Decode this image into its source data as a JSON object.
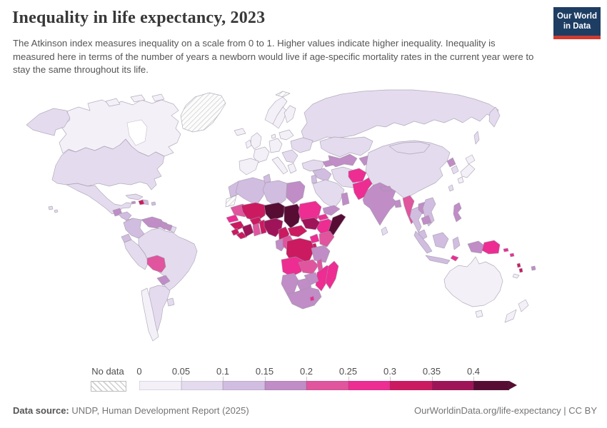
{
  "header": {
    "title": "Inequality in life expectancy, 2023",
    "logo": {
      "line1": "Our World",
      "line2": "in Data",
      "bg_color": "#1d3d63",
      "bar_color": "#d33a2f"
    }
  },
  "subtitle": "The Atkinson index measures inequality on a scale from 0 to 1. Higher values indicate higher inequality. Inequality is measured here in terms of the number of years a newborn would live if age-specific mortality rates in the current year were to stay the same throughout its life.",
  "legend": {
    "no_data_label": "No data",
    "ticks": [
      "0",
      "0.05",
      "0.1",
      "0.15",
      "0.2",
      "0.25",
      "0.3",
      "0.35",
      "0.4"
    ],
    "palette": [
      "#f4f0f8",
      "#e4dcee",
      "#d1bde0",
      "#c08dc6",
      "#e0559d",
      "#ed2d92",
      "#cb1a60",
      "#9f1458",
      "#570d33"
    ],
    "nodata_hatch_color": "#cfcfcf"
  },
  "footer": {
    "source_label": "Data source:",
    "source_text": " UNDP, Human Development Report (2025)",
    "link_text": "OurWorldinData.org/life-expectancy | CC BY"
  },
  "chart_data": {
    "type": "heatmap",
    "subtype": "world-choropleth-map",
    "title": "Inequality in life expectancy, 2023",
    "unit": "Atkinson index (0–1)",
    "legend_position": "bottom",
    "bucket_ranges": [
      "0-0.05",
      "0.05-0.1",
      "0.1-0.15",
      "0.15-0.2",
      "0.2-0.25",
      "0.25-0.3",
      "0.3-0.35",
      "0.35-0.4",
      "0.4+"
    ],
    "no_data_key": "nd",
    "countries": [
      {
        "id": "canada",
        "name": "Canada",
        "bucket": 0
      },
      {
        "id": "alaska",
        "name": "United States (Alaska)",
        "bucket": 1
      },
      {
        "id": "greenland",
        "name": "Greenland",
        "bucket": "nd"
      },
      {
        "id": "iceland",
        "name": "Iceland",
        "bucket": 0
      },
      {
        "id": "usa",
        "name": "United States",
        "bucket": 1
      },
      {
        "id": "hawaii",
        "name": "United States (Hawaii)",
        "bucket": 1
      },
      {
        "id": "mexico",
        "name": "Mexico",
        "bucket": 1
      },
      {
        "id": "guatemala",
        "name": "Guatemala",
        "bucket": 3
      },
      {
        "id": "honduras",
        "name": "Honduras/Nicaragua",
        "bucket": 2
      },
      {
        "id": "panama",
        "name": "Costa Rica/Panama",
        "bucket": 1
      },
      {
        "id": "cuba",
        "name": "Cuba",
        "bucket": 1
      },
      {
        "id": "jamaica",
        "name": "Jamaica",
        "bucket": 3
      },
      {
        "id": "haiti",
        "name": "Haiti",
        "bucket": 6
      },
      {
        "id": "dominican-republic",
        "name": "Dominican Republic",
        "bucket": 2
      },
      {
        "id": "puerto-rico",
        "name": "Puerto Rico",
        "bucket": 2
      },
      {
        "id": "colombia",
        "name": "Colombia",
        "bucket": 2
      },
      {
        "id": "venezuela",
        "name": "Venezuela",
        "bucket": 3
      },
      {
        "id": "guyana",
        "name": "Guyana",
        "bucket": 3
      },
      {
        "id": "suriname",
        "name": "Suriname",
        "bucket": 3
      },
      {
        "id": "french-guiana",
        "name": "French Guiana",
        "bucket": 1
      },
      {
        "id": "ecuador",
        "name": "Ecuador",
        "bucket": 2
      },
      {
        "id": "peru",
        "name": "Peru",
        "bucket": 1
      },
      {
        "id": "brazil",
        "name": "Brazil",
        "bucket": 1
      },
      {
        "id": "bolivia",
        "name": "Bolivia",
        "bucket": 4
      },
      {
        "id": "paraguay",
        "name": "Paraguay",
        "bucket": 3
      },
      {
        "id": "chile",
        "name": "Chile",
        "bucket": 0
      },
      {
        "id": "argentina",
        "name": "Argentina",
        "bucket": 1
      },
      {
        "id": "uruguay",
        "name": "Uruguay",
        "bucket": 1
      },
      {
        "id": "norway",
        "name": "Norway",
        "bucket": 0
      },
      {
        "id": "sweden",
        "name": "Sweden",
        "bucket": 0
      },
      {
        "id": "finland",
        "name": "Finland",
        "bucket": 0
      },
      {
        "id": "denmark",
        "name": "Denmark",
        "bucket": 0
      },
      {
        "id": "united-kingdom",
        "name": "United Kingdom",
        "bucket": 0
      },
      {
        "id": "ireland",
        "name": "Ireland",
        "bucket": 0
      },
      {
        "id": "spain",
        "name": "Spain/Portugal",
        "bucket": 0
      },
      {
        "id": "france",
        "name": "France",
        "bucket": 0
      },
      {
        "id": "germany",
        "name": "Germany",
        "bucket": 0
      },
      {
        "id": "italy",
        "name": "Italy",
        "bucket": 0
      },
      {
        "id": "balkans",
        "name": "Balkans",
        "bucket": 1
      },
      {
        "id": "greece",
        "name": "Greece",
        "bucket": 0
      },
      {
        "id": "poland",
        "name": "Poland/Baltics",
        "bucket": 0
      },
      {
        "id": "ukraine",
        "name": "Ukraine",
        "bucket": 1
      },
      {
        "id": "russia",
        "name": "Russia",
        "bucket": 1
      },
      {
        "id": "svalbard",
        "name": "Svalbard",
        "bucket": "nd"
      },
      {
        "id": "turkey",
        "name": "Turkey",
        "bucket": 1
      },
      {
        "id": "syria-iraq",
        "name": "Syria/Iraq",
        "bucket": 2
      },
      {
        "id": "jordan-israel",
        "name": "Jordan/Israel",
        "bucket": 2
      },
      {
        "id": "saudi-arabia",
        "name": "Saudi Arabia",
        "bucket": 1
      },
      {
        "id": "yemen",
        "name": "Yemen",
        "bucket": 3
      },
      {
        "id": "oman",
        "name": "Oman",
        "bucket": 3
      },
      {
        "id": "caucasus",
        "name": "Caucasus",
        "bucket": 3
      },
      {
        "id": "iran",
        "name": "Iran",
        "bucket": 1
      },
      {
        "id": "kazakhstan",
        "name": "Kazakhstan",
        "bucket": 1
      },
      {
        "id": "uzbekistan-turkmenistan",
        "name": "Uzbekistan/Turkmenistan",
        "bucket": 3
      },
      {
        "id": "kyrgyzstan-tajikistan",
        "name": "Kyrgyzstan/Tajikistan",
        "bucket": 3
      },
      {
        "id": "afghanistan",
        "name": "Afghanistan",
        "bucket": 5
      },
      {
        "id": "pakistan",
        "name": "Pakistan",
        "bucket": 5
      },
      {
        "id": "india",
        "name": "India",
        "bucket": 3
      },
      {
        "id": "nepal",
        "name": "Nepal",
        "bucket": 3
      },
      {
        "id": "bangladesh",
        "name": "Bangladesh",
        "bucket": 3
      },
      {
        "id": "sri-lanka",
        "name": "Sri Lanka",
        "bucket": 1
      },
      {
        "id": "myanmar",
        "name": "Myanmar",
        "bucket": 4
      },
      {
        "id": "thailand",
        "name": "Thailand",
        "bucket": 2
      },
      {
        "id": "laos",
        "name": "Laos",
        "bucket": 3
      },
      {
        "id": "vietnam",
        "name": "Vietnam",
        "bucket": 2
      },
      {
        "id": "cambodia",
        "name": "Cambodia",
        "bucket": 3
      },
      {
        "id": "malaysia",
        "name": "Malaysia",
        "bucket": 2
      },
      {
        "id": "china",
        "name": "China",
        "bucket": 1
      },
      {
        "id": "mongolia",
        "name": "Mongolia",
        "bucket": 1
      },
      {
        "id": "north-korea",
        "name": "North Korea",
        "bucket": 3
      },
      {
        "id": "south-korea",
        "name": "South Korea",
        "bucket": 1
      },
      {
        "id": "japan",
        "name": "Japan",
        "bucket": 0
      },
      {
        "id": "taiwan",
        "name": "Taiwan",
        "bucket": 1
      },
      {
        "id": "philippines",
        "name": "Philippines",
        "bucket": 3
      },
      {
        "id": "indonesia",
        "name": "Indonesia",
        "bucket": 2
      },
      {
        "id": "timor-leste",
        "name": "Timor-Leste",
        "bucket": 5
      },
      {
        "id": "indonesia-papua",
        "name": "Indonesia (Papua)",
        "bucket": 3
      },
      {
        "id": "papua-new-guinea",
        "name": "Papua New Guinea",
        "bucket": 5
      },
      {
        "id": "solomon-islands",
        "name": "Solomon Islands",
        "bucket": 5
      },
      {
        "id": "vanuatu",
        "name": "Vanuatu",
        "bucket": 6
      },
      {
        "id": "fiji",
        "name": "Fiji",
        "bucket": 3
      },
      {
        "id": "new-caledonia",
        "name": "New Caledonia",
        "bucket": 0
      },
      {
        "id": "australia",
        "name": "Australia",
        "bucket": 0
      },
      {
        "id": "new-zealand",
        "name": "New Zealand",
        "bucket": 0
      },
      {
        "id": "morocco",
        "name": "Morocco",
        "bucket": 2
      },
      {
        "id": "western-sahara",
        "name": "Western Sahara",
        "bucket": "nd"
      },
      {
        "id": "algeria",
        "name": "Algeria",
        "bucket": 2
      },
      {
        "id": "tunisia",
        "name": "Tunisia",
        "bucket": 2
      },
      {
        "id": "libya",
        "name": "Libya",
        "bucket": 2
      },
      {
        "id": "egypt",
        "name": "Egypt",
        "bucket": 3
      },
      {
        "id": "mauritania",
        "name": "Mauritania",
        "bucket": 4
      },
      {
        "id": "senegal",
        "name": "Senegal",
        "bucket": 5
      },
      {
        "id": "guinea",
        "name": "Guinea",
        "bucket": 6
      },
      {
        "id": "sierra-leone",
        "name": "Sierra Leone",
        "bucket": 6
      },
      {
        "id": "liberia",
        "name": "Liberia",
        "bucket": 6
      },
      {
        "id": "mali",
        "name": "Mali",
        "bucket": 6
      },
      {
        "id": "burkina-faso",
        "name": "Burkina Faso",
        "bucket": 6
      },
      {
        "id": "cote-divoire",
        "name": "Cote d'Ivoire",
        "bucket": 7
      },
      {
        "id": "ghana",
        "name": "Ghana",
        "bucket": 4
      },
      {
        "id": "togo-benin",
        "name": "Togo/Benin",
        "bucket": 6
      },
      {
        "id": "niger",
        "name": "Niger",
        "bucket": 8
      },
      {
        "id": "nigeria",
        "name": "Nigeria",
        "bucket": 7
      },
      {
        "id": "chad",
        "name": "Chad",
        "bucket": 8
      },
      {
        "id": "sudan",
        "name": "Sudan",
        "bucket": 5
      },
      {
        "id": "eritrea",
        "name": "Eritrea",
        "bucket": 5
      },
      {
        "id": "ethiopia",
        "name": "Ethiopia",
        "bucket": 5
      },
      {
        "id": "somalia",
        "name": "Somalia",
        "bucket": 8
      },
      {
        "id": "cameroon",
        "name": "Cameroon",
        "bucket": 6
      },
      {
        "id": "central-african-republic",
        "name": "Central African Republic",
        "bucket": 6
      },
      {
        "id": "south-sudan",
        "name": "South Sudan",
        "bucket": 7
      },
      {
        "id": "uganda",
        "name": "Uganda",
        "bucket": 5
      },
      {
        "id": "kenya",
        "name": "Kenya",
        "bucket": 4
      },
      {
        "id": "rwanda-burundi",
        "name": "Rwanda/Burundi",
        "bucket": 6
      },
      {
        "id": "gabon",
        "name": "Gabon",
        "bucket": 3
      },
      {
        "id": "congo",
        "name": "Congo",
        "bucket": 4
      },
      {
        "id": "dr-congo",
        "name": "Democratic Republic of Congo",
        "bucket": 6
      },
      {
        "id": "tanzania",
        "name": "Tanzania",
        "bucket": 3
      },
      {
        "id": "angola",
        "name": "Angola",
        "bucket": 5
      },
      {
        "id": "zambia",
        "name": "Zambia",
        "bucket": 4
      },
      {
        "id": "malawi",
        "name": "Malawi",
        "bucket": 4
      },
      {
        "id": "mozambique",
        "name": "Mozambique",
        "bucket": 5
      },
      {
        "id": "zimbabwe",
        "name": "Zimbabwe",
        "bucket": 3
      },
      {
        "id": "botswana",
        "name": "Botswana",
        "bucket": 3
      },
      {
        "id": "namibia",
        "name": "Namibia",
        "bucket": 3
      },
      {
        "id": "south-africa",
        "name": "South Africa",
        "bucket": 3
      },
      {
        "id": "lesotho",
        "name": "Lesotho",
        "bucket": 5
      },
      {
        "id": "madagascar",
        "name": "Madagascar",
        "bucket": 5
      }
    ]
  }
}
